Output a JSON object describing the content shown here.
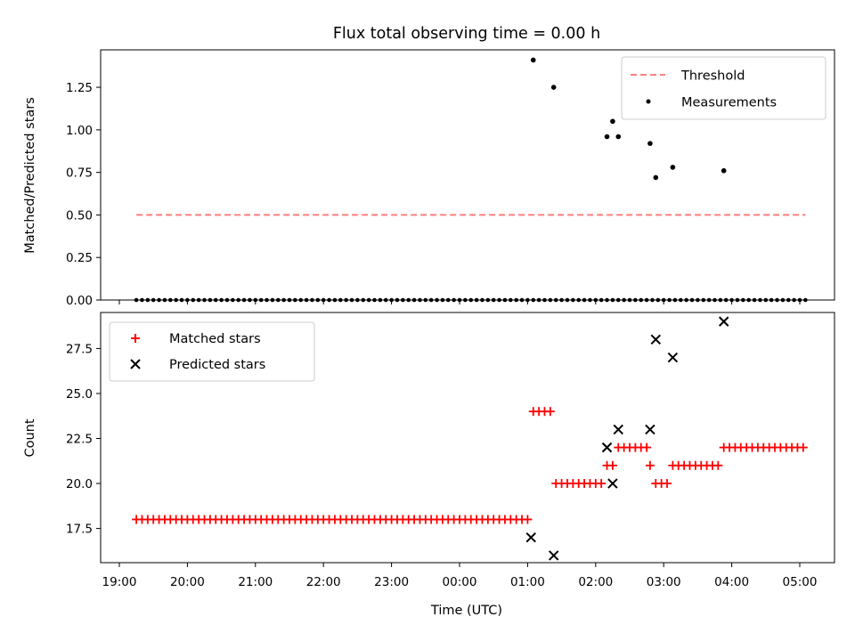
{
  "chart_data": [
    {
      "type": "scatter",
      "title": "Flux total observing time = 0.00 h",
      "ylabel": "Matched/Predicted stars",
      "xlabel": "",
      "ylim": [
        0,
        1.47
      ],
      "yticks": [
        "0.00",
        "0.25",
        "0.50",
        "0.75",
        "1.00",
        "1.25"
      ],
      "legend": {
        "placement": "top-right",
        "entries": [
          "Threshold",
          "Measurements"
        ]
      },
      "threshold": {
        "name": "Threshold",
        "value": 0.5,
        "x_start": "19:15",
        "x_end": "05:05",
        "color": "#ff7f7f"
      },
      "series": [
        {
          "name": "Measurements",
          "color": "#000000",
          "points": [
            [
              "01:05",
              1.41
            ],
            [
              "01:23",
              1.25
            ],
            [
              "02:10",
              0.96
            ],
            [
              "02:15",
              1.05
            ],
            [
              "02:20",
              0.96
            ],
            [
              "02:48",
              0.92
            ],
            [
              "02:53",
              0.72
            ],
            [
              "03:08",
              0.78
            ],
            [
              "03:53",
              0.76
            ]
          ],
          "zero_from": "19:15",
          "zero_to": "05:05",
          "zero_step_min": 5
        }
      ]
    },
    {
      "type": "scatter",
      "title": "",
      "ylabel": "Count",
      "xlabel": "Time (UTC)",
      "ylim": [
        15.6,
        29.5
      ],
      "yticks": [
        "17.5",
        "20.0",
        "22.5",
        "25.0",
        "27.5"
      ],
      "xticks": [
        "19:00",
        "20:00",
        "21:00",
        "22:00",
        "23:00",
        "00:00",
        "01:00",
        "02:00",
        "03:00",
        "04:00",
        "05:00"
      ],
      "legend": {
        "placement": "top-left",
        "entries": [
          "Matched stars",
          "Predicted stars"
        ]
      },
      "series": [
        {
          "name": "Matched stars",
          "marker": "plus",
          "color": "#ff0000",
          "segments": [
            {
              "from": "19:15",
              "to": "01:00",
              "value": 18
            },
            {
              "from": "01:05",
              "to": "01:20",
              "value": 24
            },
            {
              "from": "01:25",
              "to": "02:05",
              "value": 20
            },
            {
              "from": "02:10",
              "to": "02:15",
              "value": 21
            },
            {
              "from": "02:20",
              "to": "02:45",
              "value": 22
            },
            {
              "from": "02:48",
              "to": "02:48",
              "value": 21
            },
            {
              "from": "02:53",
              "to": "03:03",
              "value": 20
            },
            {
              "from": "03:08",
              "to": "03:48",
              "value": 21
            },
            {
              "from": "03:53",
              "to": "05:05",
              "value": 22
            }
          ],
          "step_min": 5
        },
        {
          "name": "Predicted stars",
          "marker": "x",
          "color": "#000000",
          "points": [
            [
              "01:03",
              17
            ],
            [
              "01:23",
              16
            ],
            [
              "02:10",
              22
            ],
            [
              "02:15",
              20
            ],
            [
              "02:20",
              23
            ],
            [
              "02:48",
              23
            ],
            [
              "02:53",
              28
            ],
            [
              "03:08",
              27
            ],
            [
              "03:53",
              29
            ]
          ]
        }
      ]
    }
  ]
}
